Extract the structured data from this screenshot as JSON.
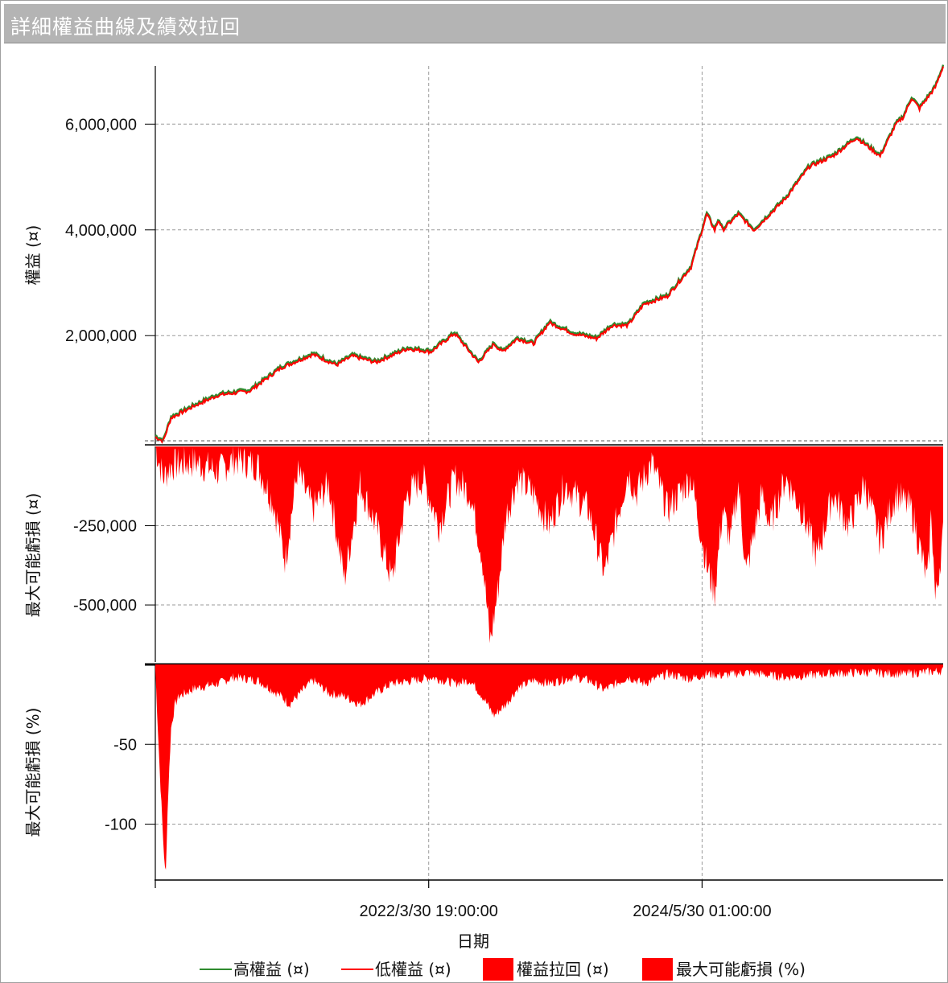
{
  "window": {
    "title": "詳細權益曲線及績效拉回"
  },
  "colors": {
    "high_equity": "#2e8b2e",
    "low_equity": "#ff0000",
    "drawdown": "#ff0000",
    "grid": "#9a9a9a",
    "axis": "#000000"
  },
  "legend": [
    {
      "label": "高權益 (¤)",
      "kind": "line",
      "color": "#2e8b2e"
    },
    {
      "label": "低權益 (¤)",
      "kind": "line",
      "color": "#ff0000"
    },
    {
      "label": "權益拉回 (¤)",
      "kind": "box",
      "color": "#ff0000"
    },
    {
      "label": "最大可能虧損 (%)",
      "kind": "box",
      "color": "#ff0000"
    }
  ],
  "chart_data": [
    {
      "type": "line",
      "ylabel": "權益 (¤)",
      "yticks": [
        6000000,
        4000000,
        2000000
      ],
      "ytick_labels": [
        "6,000,000",
        "4,000,000",
        "2,000,000"
      ],
      "ylim": [
        -50000,
        7100000
      ],
      "series": [
        {
          "name": "高權益 (¤)"
        },
        {
          "name": "低權益 (¤)"
        }
      ],
      "x": [
        0,
        0.01,
        0.02,
        0.05,
        0.08,
        0.12,
        0.16,
        0.2,
        0.23,
        0.25,
        0.28,
        0.32,
        0.35,
        0.38,
        0.41,
        0.43,
        0.44,
        0.46,
        0.48,
        0.5,
        0.53,
        0.56,
        0.58,
        0.6,
        0.62,
        0.65,
        0.68,
        0.7,
        0.71,
        0.715,
        0.72,
        0.74,
        0.76,
        0.8,
        0.83,
        0.86,
        0.89,
        0.92,
        0.94,
        0.95,
        0.96,
        0.97,
        0.98,
        0.99,
        1.0
      ],
      "y": [
        90000,
        10000,
        450000,
        680000,
        880000,
        960000,
        1400000,
        1650000,
        1450000,
        1620000,
        1500000,
        1760000,
        1700000,
        2050000,
        1500000,
        1850000,
        1700000,
        1950000,
        1850000,
        2250000,
        2050000,
        1950000,
        2200000,
        2200000,
        2600000,
        2750000,
        3300000,
        4300000,
        4000000,
        4200000,
        4000000,
        4300000,
        4000000,
        4600000,
        5200000,
        5400000,
        5750000,
        5400000,
        6000000,
        6150000,
        6500000,
        6300000,
        6500000,
        6700000,
        7100000
      ]
    },
    {
      "type": "area",
      "ylabel": "最大可能虧損 (¤)",
      "yticks": [
        -250000,
        -500000
      ],
      "ytick_labels": [
        "-250,000",
        "-500,000"
      ],
      "ylim": [
        -680000,
        0
      ],
      "series": [
        {
          "name": "權益拉回 (¤)"
        }
      ],
      "x": [
        0,
        0.01,
        0.02,
        0.05,
        0.08,
        0.1,
        0.13,
        0.15,
        0.165,
        0.18,
        0.2,
        0.22,
        0.24,
        0.26,
        0.28,
        0.3,
        0.32,
        0.34,
        0.36,
        0.38,
        0.4,
        0.415,
        0.425,
        0.435,
        0.445,
        0.46,
        0.48,
        0.5,
        0.52,
        0.55,
        0.57,
        0.6,
        0.61,
        0.63,
        0.65,
        0.68,
        0.7,
        0.71,
        0.72,
        0.73,
        0.74,
        0.75,
        0.77,
        0.78,
        0.8,
        0.82,
        0.84,
        0.86,
        0.88,
        0.9,
        0.92,
        0.94,
        0.96,
        0.98,
        0.985,
        0.99,
        1.0
      ],
      "y": [
        0,
        -100000,
        -60000,
        -50000,
        -80000,
        -40000,
        -60000,
        -180000,
        -360000,
        -80000,
        -200000,
        -120000,
        -420000,
        -120000,
        -250000,
        -420000,
        -150000,
        -100000,
        -250000,
        -100000,
        -150000,
        -350000,
        -620000,
        -450000,
        -220000,
        -100000,
        -150000,
        -250000,
        -120000,
        -200000,
        -400000,
        -80000,
        -150000,
        -50000,
        -200000,
        -100000,
        -380000,
        -460000,
        -200000,
        -300000,
        -120000,
        -400000,
        -150000,
        -250000,
        -100000,
        -200000,
        -350000,
        -150000,
        -250000,
        -120000,
        -300000,
        -150000,
        -200000,
        -430000,
        -200000,
        -490000,
        -280000
      ]
    },
    {
      "type": "area",
      "ylabel": "最大可能虧損 (%)",
      "yticks": [
        -50,
        -100
      ],
      "ytick_labels": [
        "-50",
        "-100"
      ],
      "ylim": [
        -135,
        0
      ],
      "series": [
        {
          "name": "最大可能虧損 (%)"
        }
      ],
      "x": [
        0,
        0.005,
        0.01,
        0.013,
        0.016,
        0.02,
        0.025,
        0.03,
        0.05,
        0.08,
        0.1,
        0.13,
        0.16,
        0.17,
        0.2,
        0.22,
        0.24,
        0.26,
        0.28,
        0.3,
        0.33,
        0.35,
        0.38,
        0.4,
        0.415,
        0.43,
        0.445,
        0.46,
        0.48,
        0.5,
        0.53,
        0.55,
        0.57,
        0.6,
        0.62,
        0.65,
        0.68,
        0.7,
        0.72,
        0.75,
        0.8,
        0.85,
        0.9,
        0.95,
        1.0
      ],
      "y": [
        -3,
        -60,
        -110,
        -135,
        -85,
        -40,
        -25,
        -20,
        -15,
        -12,
        -8,
        -10,
        -20,
        -25,
        -10,
        -18,
        -20,
        -25,
        -18,
        -12,
        -10,
        -8,
        -12,
        -10,
        -20,
        -32,
        -25,
        -15,
        -10,
        -12,
        -8,
        -10,
        -16,
        -8,
        -12,
        -6,
        -9,
        -6,
        -7,
        -5,
        -8,
        -6,
        -5,
        -6,
        -4
      ]
    }
  ],
  "x_axis": {
    "xlabel": "日期",
    "ticks": [
      {
        "pos": 0.0,
        "label": ""
      },
      {
        "pos": 0.347,
        "label": "2022/3/30 19:00:00"
      },
      {
        "pos": 0.694,
        "label": "2024/5/30 01:00:00"
      }
    ]
  }
}
